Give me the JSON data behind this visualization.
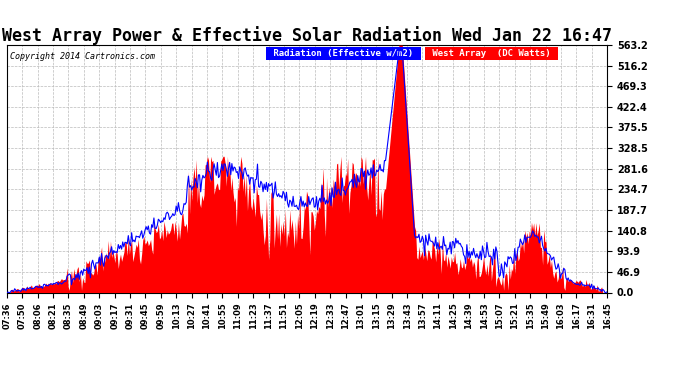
{
  "title": "West Array Power & Effective Solar Radiation Wed Jan 22 16:47",
  "copyright": "Copyright 2014 Cartronics.com",
  "legend_radiation": "Radiation (Effective w/m2)",
  "legend_west": "West Array  (DC Watts)",
  "yticks": [
    0.0,
    46.9,
    93.9,
    140.8,
    187.7,
    234.7,
    281.6,
    328.5,
    375.5,
    422.4,
    469.3,
    516.2,
    563.2
  ],
  "ylim": [
    0.0,
    563.2
  ],
  "radiation_color": "#0000ff",
  "west_color": "#ff0000",
  "west_fill_color": "#ff0000",
  "background_color": "#ffffff",
  "grid_color": "#bbbbbb",
  "title_fontsize": 12,
  "num_points": 540,
  "xtick_labels": [
    "07:36",
    "07:50",
    "08:06",
    "08:21",
    "08:35",
    "08:49",
    "09:03",
    "09:17",
    "09:31",
    "09:45",
    "09:59",
    "10:13",
    "10:27",
    "10:41",
    "10:55",
    "11:09",
    "11:23",
    "11:37",
    "11:51",
    "12:05",
    "12:19",
    "12:33",
    "12:47",
    "13:01",
    "13:15",
    "13:29",
    "13:43",
    "13:57",
    "14:11",
    "14:25",
    "14:39",
    "14:53",
    "15:07",
    "15:21",
    "15:35",
    "15:49",
    "16:03",
    "16:17",
    "16:31",
    "16:45"
  ]
}
